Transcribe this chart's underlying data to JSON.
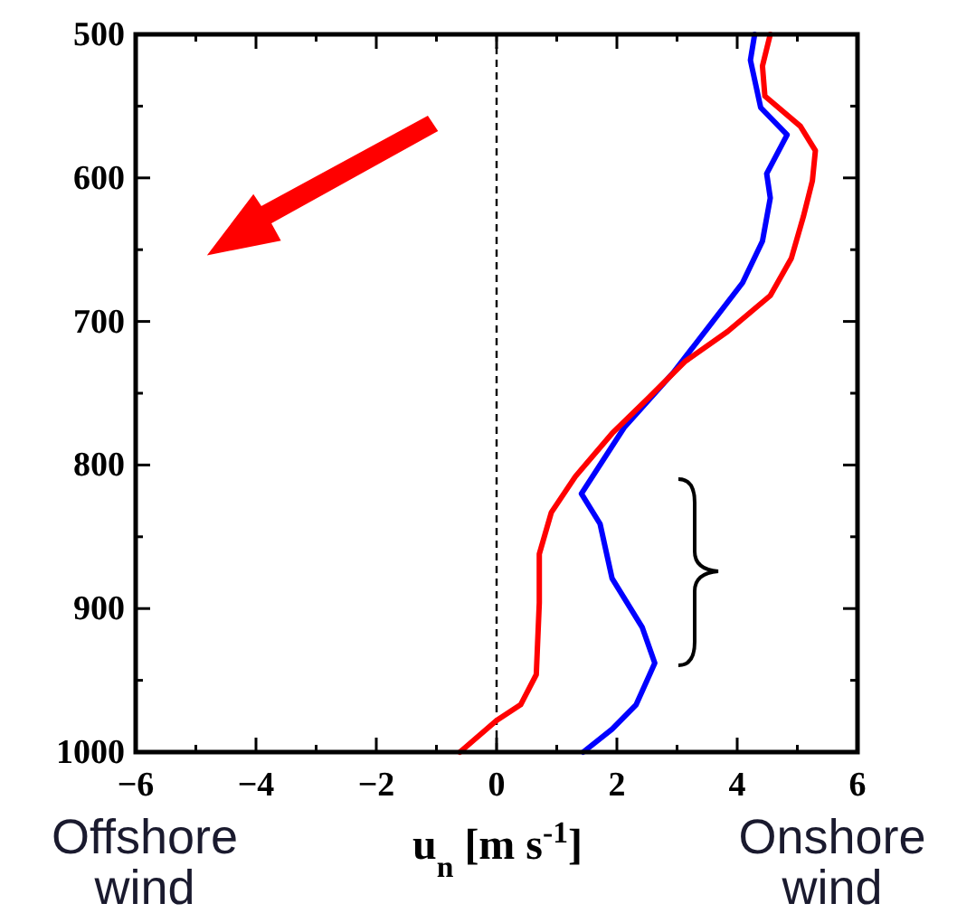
{
  "chart_data": {
    "type": "line",
    "xlabel": "u$_{n}$ [m s$^{-1}$]",
    "xlim": [
      -6,
      6
    ],
    "xticks": [
      -6,
      {
        "value": -5,
        "label": null
      },
      -4,
      {
        "value": -3,
        "label": null
      },
      -2,
      {
        "value": -1,
        "label": null
      },
      0,
      {
        "value": 1,
        "label": null
      },
      2,
      {
        "value": 3,
        "label": null
      },
      4,
      {
        "value": 5,
        "label": null
      },
      6
    ],
    "ylim": [
      1000,
      500
    ],
    "yticks": [
      500,
      {
        "value": 550,
        "label": null
      },
      600,
      {
        "value": 650,
        "label": null
      },
      700,
      {
        "value": 750,
        "label": null
      },
      800,
      {
        "value": 850,
        "label": null
      },
      900,
      {
        "value": 950,
        "label": null
      },
      1000
    ],
    "grid": false,
    "marker": "none",
    "line_style": "solid",
    "ref_lines": [
      {
        "axis": "x",
        "value": 0,
        "label": null,
        "color": "#000000",
        "line_style": "dashed"
      }
    ],
    "annotations": [
      "Offshore wind",
      "Onshore wind"
    ],
    "series": [
      {
        "color": "#0000ff",
        "x": [
          4.29,
          4.22,
          4.39,
          4.83,
          4.49,
          4.55,
          4.42,
          4.09,
          3.54,
          2.93,
          2.12,
          1.41,
          1.72,
          1.92,
          2.42,
          2.63,
          2.32,
          1.92,
          1.44
        ],
        "values": [
          500,
          518,
          551,
          570,
          597,
          614,
          644,
          673,
          703,
          736,
          774,
          820,
          841,
          879,
          913,
          938,
          967,
          984,
          1000
        ]
      },
      {
        "color": "#ff0000",
        "x": [
          4.55,
          4.42,
          4.46,
          5.05,
          5.3,
          5.25,
          5.1,
          4.9,
          4.55,
          3.84,
          3.13,
          2.53,
          1.92,
          1.31,
          0.91,
          0.71,
          0.71,
          0.66,
          0.4,
          0,
          -0.61
        ],
        "values": [
          500,
          522,
          543,
          564,
          581,
          602,
          627,
          656,
          682,
          707,
          728,
          753,
          778,
          808,
          833,
          862,
          896,
          946,
          967,
          978,
          1000
        ]
      }
    ]
  }
}
